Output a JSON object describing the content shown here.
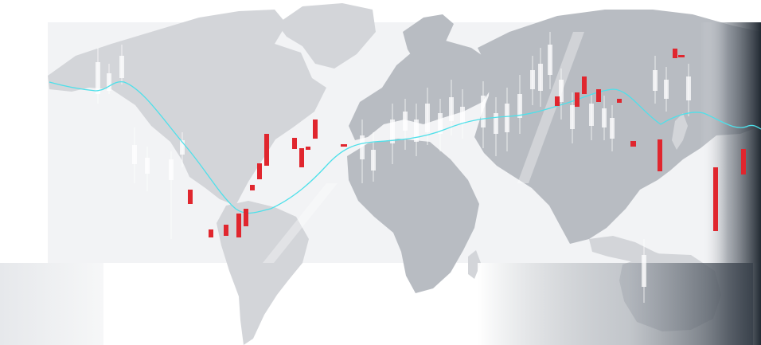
{
  "scene": {
    "name": "world-map-trading-banner",
    "background": "#ffffff",
    "map_color": "#d3d5d9",
    "map_dark_color": "#b8bcc2",
    "candle_bear_color": "#e0262e",
    "candle_ghost_color": "#ffffff",
    "trend_line_color": "#4ee0ea",
    "edge_fade_color": "#2a313a"
  }
}
